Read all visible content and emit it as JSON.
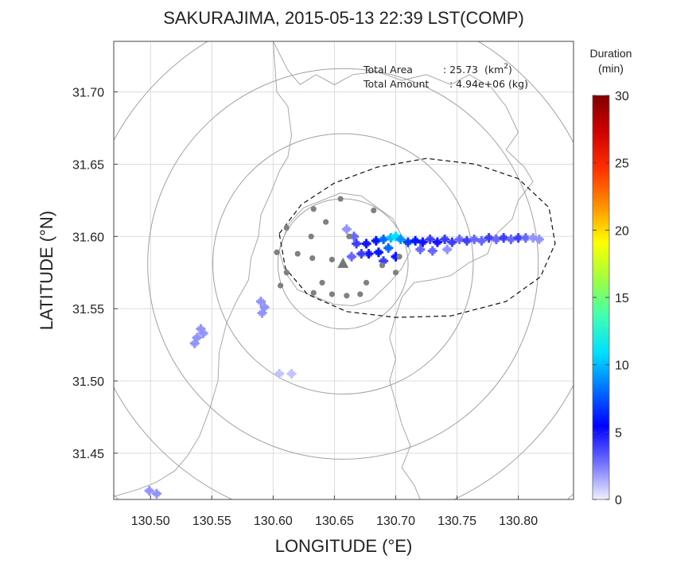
{
  "title": "SAKURAJIMA, 2015-05-13 22:39 LST(COMP)",
  "xlabel": "LONGITUDE (°E)",
  "ylabel": "LATITUDE (°N)",
  "info": {
    "area_label": "Total Area",
    "area_value": ": 25.73",
    "area_unit_base": "(km",
    "area_unit_sup": "2",
    "area_unit_close": ")",
    "amount_label": "Total Amount",
    "amount_value": ": 4.94e+06 (kg)"
  },
  "colorbar": {
    "title_line1": "Duration",
    "title_line2": "(min)",
    "range": [
      0,
      30
    ],
    "ticks": [
      "0",
      "5",
      "10",
      "15",
      "20",
      "25",
      "30"
    ],
    "stops": [
      "#f0f0ff",
      "#7070ff",
      "#0000ff",
      "#0070ff",
      "#00e0ff",
      "#40ffb0",
      "#a0ff40",
      "#ffff00",
      "#ff9000",
      "#ff3000",
      "#d00000",
      "#800000"
    ]
  },
  "chart_data": {
    "type": "scatter",
    "xlim": [
      130.47,
      130.845
    ],
    "ylim": [
      31.418,
      31.735
    ],
    "xticks": [
      130.5,
      130.55,
      130.6,
      130.65,
      130.7,
      130.75,
      130.8
    ],
    "yticks": [
      31.45,
      31.5,
      31.55,
      31.6,
      31.65,
      31.7
    ],
    "xtick_labels": [
      "130.50",
      "130.55",
      "130.60",
      "130.65",
      "130.70",
      "130.75",
      "130.80"
    ],
    "ytick_labels": [
      "31.45",
      "31.50",
      "31.55",
      "31.60",
      "31.65",
      "31.70"
    ],
    "grid": true,
    "vent": {
      "lon": 130.657,
      "lat": 31.581
    },
    "range_rings_km": [
      5,
      10,
      15,
      20,
      25
    ],
    "stations": [
      {
        "lon": 130.611,
        "lat": 31.606
      },
      {
        "lon": 130.633,
        "lat": 31.619
      },
      {
        "lon": 130.655,
        "lat": 31.626
      },
      {
        "lon": 130.682,
        "lat": 31.618
      },
      {
        "lon": 130.643,
        "lat": 31.61
      },
      {
        "lon": 130.662,
        "lat": 31.6
      },
      {
        "lon": 130.62,
        "lat": 31.588
      },
      {
        "lon": 130.632,
        "lat": 31.585
      },
      {
        "lon": 130.648,
        "lat": 31.584
      },
      {
        "lon": 130.603,
        "lat": 31.589
      },
      {
        "lon": 130.611,
        "lat": 31.575
      },
      {
        "lon": 130.606,
        "lat": 31.566
      },
      {
        "lon": 130.64,
        "lat": 31.568
      },
      {
        "lon": 130.676,
        "lat": 31.568
      },
      {
        "lon": 130.689,
        "lat": 31.58
      },
      {
        "lon": 130.703,
        "lat": 31.586
      },
      {
        "lon": 130.7,
        "lat": 31.575
      },
      {
        "lon": 130.633,
        "lat": 31.561
      },
      {
        "lon": 130.648,
        "lat": 31.56
      },
      {
        "lon": 130.66,
        "lat": 31.559
      },
      {
        "lon": 130.671,
        "lat": 31.56
      },
      {
        "lon": 130.631,
        "lat": 31.6
      }
    ],
    "dispersion_region": [
      {
        "lon": 130.605,
        "lat": 31.602
      },
      {
        "lon": 130.623,
        "lat": 31.622
      },
      {
        "lon": 130.65,
        "lat": 31.637
      },
      {
        "lon": 130.685,
        "lat": 31.648
      },
      {
        "lon": 130.725,
        "lat": 31.654
      },
      {
        "lon": 130.765,
        "lat": 31.65
      },
      {
        "lon": 130.8,
        "lat": 31.64
      },
      {
        "lon": 130.825,
        "lat": 31.62
      },
      {
        "lon": 130.83,
        "lat": 31.595
      },
      {
        "lon": 130.818,
        "lat": 31.572
      },
      {
        "lon": 130.79,
        "lat": 31.555
      },
      {
        "lon": 130.745,
        "lat": 31.545
      },
      {
        "lon": 130.7,
        "lat": 31.544
      },
      {
        "lon": 130.66,
        "lat": 31.548
      },
      {
        "lon": 130.628,
        "lat": 31.56
      },
      {
        "lon": 130.61,
        "lat": 31.578
      },
      {
        "lon": 130.605,
        "lat": 31.602
      }
    ],
    "ash_points": [
      {
        "lon": 130.668,
        "lat": 31.595,
        "d": 4
      },
      {
        "lon": 130.676,
        "lat": 31.595,
        "d": 5
      },
      {
        "lon": 130.684,
        "lat": 31.597,
        "d": 6
      },
      {
        "lon": 130.69,
        "lat": 31.598,
        "d": 8
      },
      {
        "lon": 130.696,
        "lat": 31.599,
        "d": 10
      },
      {
        "lon": 130.7,
        "lat": 31.6,
        "d": 11
      },
      {
        "lon": 130.704,
        "lat": 31.598,
        "d": 9
      },
      {
        "lon": 130.694,
        "lat": 31.592,
        "d": 8
      },
      {
        "lon": 130.686,
        "lat": 31.589,
        "d": 6
      },
      {
        "lon": 130.678,
        "lat": 31.588,
        "d": 5
      },
      {
        "lon": 130.672,
        "lat": 31.588,
        "d": 4
      },
      {
        "lon": 130.664,
        "lat": 31.586,
        "d": 3
      },
      {
        "lon": 130.666,
        "lat": 31.6,
        "d": 3
      },
      {
        "lon": 130.71,
        "lat": 31.596,
        "d": 7
      },
      {
        "lon": 130.716,
        "lat": 31.597,
        "d": 6
      },
      {
        "lon": 130.722,
        "lat": 31.596,
        "d": 5
      },
      {
        "lon": 130.728,
        "lat": 31.598,
        "d": 4
      },
      {
        "lon": 130.734,
        "lat": 31.596,
        "d": 5
      },
      {
        "lon": 130.74,
        "lat": 31.598,
        "d": 4
      },
      {
        "lon": 130.746,
        "lat": 31.596,
        "d": 4
      },
      {
        "lon": 130.752,
        "lat": 31.598,
        "d": 3
      },
      {
        "lon": 130.758,
        "lat": 31.597,
        "d": 4
      },
      {
        "lon": 130.764,
        "lat": 31.598,
        "d": 3
      },
      {
        "lon": 130.77,
        "lat": 31.597,
        "d": 3
      },
      {
        "lon": 130.776,
        "lat": 31.599,
        "d": 4
      },
      {
        "lon": 130.782,
        "lat": 31.598,
        "d": 3
      },
      {
        "lon": 130.788,
        "lat": 31.599,
        "d": 4
      },
      {
        "lon": 130.794,
        "lat": 31.598,
        "d": 3
      },
      {
        "lon": 130.8,
        "lat": 31.599,
        "d": 4
      },
      {
        "lon": 130.806,
        "lat": 31.599,
        "d": 3
      },
      {
        "lon": 130.812,
        "lat": 31.599,
        "d": 2
      },
      {
        "lon": 130.817,
        "lat": 31.598,
        "d": 2
      },
      {
        "lon": 130.72,
        "lat": 31.591,
        "d": 3
      },
      {
        "lon": 130.73,
        "lat": 31.59,
        "d": 3
      },
      {
        "lon": 130.742,
        "lat": 31.591,
        "d": 2
      },
      {
        "lon": 130.69,
        "lat": 31.583,
        "d": 4
      },
      {
        "lon": 130.7,
        "lat": 31.586,
        "d": 5
      },
      {
        "lon": 130.66,
        "lat": 31.605,
        "d": 2
      },
      {
        "lon": 130.59,
        "lat": 31.555,
        "d": 2
      },
      {
        "lon": 130.593,
        "lat": 31.551,
        "d": 2
      },
      {
        "lon": 130.591,
        "lat": 31.547,
        "d": 2
      },
      {
        "lon": 130.541,
        "lat": 31.536,
        "d": 2
      },
      {
        "lon": 130.538,
        "lat": 31.53,
        "d": 2
      },
      {
        "lon": 130.543,
        "lat": 31.533,
        "d": 2
      },
      {
        "lon": 130.536,
        "lat": 31.526,
        "d": 2
      },
      {
        "lon": 130.605,
        "lat": 31.505,
        "d": 1
      },
      {
        "lon": 130.615,
        "lat": 31.505,
        "d": 1
      },
      {
        "lon": 130.499,
        "lat": 31.424,
        "d": 2
      },
      {
        "lon": 130.505,
        "lat": 31.422,
        "d": 2
      }
    ],
    "coastlines": [
      [
        {
          "lon": 130.6,
          "lat": 31.735
        },
        {
          "lon": 130.612,
          "lat": 31.715
        },
        {
          "lon": 130.622,
          "lat": 31.705
        },
        {
          "lon": 130.635,
          "lat": 31.712
        },
        {
          "lon": 130.65,
          "lat": 31.705
        },
        {
          "lon": 130.665,
          "lat": 31.712
        },
        {
          "lon": 130.685,
          "lat": 31.714
        },
        {
          "lon": 130.705,
          "lat": 31.708
        },
        {
          "lon": 130.725,
          "lat": 31.712
        },
        {
          "lon": 130.745,
          "lat": 31.705
        },
        {
          "lon": 130.76,
          "lat": 31.712
        },
        {
          "lon": 130.778,
          "lat": 31.703
        },
        {
          "lon": 130.79,
          "lat": 31.69
        },
        {
          "lon": 130.8,
          "lat": 31.672
        },
        {
          "lon": 130.79,
          "lat": 31.66
        },
        {
          "lon": 130.805,
          "lat": 31.648
        },
        {
          "lon": 130.812,
          "lat": 31.638
        },
        {
          "lon": 130.8,
          "lat": 31.625
        },
        {
          "lon": 130.795,
          "lat": 31.612
        },
        {
          "lon": 130.78,
          "lat": 31.6
        },
        {
          "lon": 130.775,
          "lat": 31.588
        },
        {
          "lon": 130.76,
          "lat": 31.582
        },
        {
          "lon": 130.745,
          "lat": 31.573
        },
        {
          "lon": 130.73,
          "lat": 31.57
        },
        {
          "lon": 130.715,
          "lat": 31.568
        },
        {
          "lon": 130.705,
          "lat": 31.558
        },
        {
          "lon": 130.7,
          "lat": 31.545
        },
        {
          "lon": 130.695,
          "lat": 31.53
        },
        {
          "lon": 130.7,
          "lat": 31.515
        },
        {
          "lon": 130.695,
          "lat": 31.5
        },
        {
          "lon": 130.7,
          "lat": 31.485
        },
        {
          "lon": 130.705,
          "lat": 31.47
        },
        {
          "lon": 130.712,
          "lat": 31.455
        },
        {
          "lon": 130.705,
          "lat": 31.44
        },
        {
          "lon": 130.715,
          "lat": 31.428
        },
        {
          "lon": 130.72,
          "lat": 31.418
        }
      ],
      [
        {
          "lon": 130.6,
          "lat": 31.735
        },
        {
          "lon": 130.603,
          "lat": 31.7
        },
        {
          "lon": 130.612,
          "lat": 31.69
        },
        {
          "lon": 130.615,
          "lat": 31.67
        },
        {
          "lon": 130.612,
          "lat": 31.655
        },
        {
          "lon": 130.605,
          "lat": 31.645
        },
        {
          "lon": 130.598,
          "lat": 31.63
        },
        {
          "lon": 130.59,
          "lat": 31.615
        },
        {
          "lon": 130.588,
          "lat": 31.6
        },
        {
          "lon": 130.582,
          "lat": 31.585
        },
        {
          "lon": 130.58,
          "lat": 31.57
        },
        {
          "lon": 130.57,
          "lat": 31.555
        },
        {
          "lon": 130.562,
          "lat": 31.54
        },
        {
          "lon": 130.556,
          "lat": 31.52
        },
        {
          "lon": 130.555,
          "lat": 31.5
        },
        {
          "lon": 130.548,
          "lat": 31.48
        },
        {
          "lon": 130.54,
          "lat": 31.462
        },
        {
          "lon": 130.53,
          "lat": 31.448
        },
        {
          "lon": 130.52,
          "lat": 31.438
        },
        {
          "lon": 130.505,
          "lat": 31.43
        },
        {
          "lon": 130.49,
          "lat": 31.425
        },
        {
          "lon": 130.47,
          "lat": 31.42
        }
      ],
      [
        {
          "lon": 130.612,
          "lat": 31.608
        },
        {
          "lon": 130.625,
          "lat": 31.62
        },
        {
          "lon": 130.64,
          "lat": 31.625
        },
        {
          "lon": 130.655,
          "lat": 31.63
        },
        {
          "lon": 130.672,
          "lat": 31.628
        },
        {
          "lon": 130.685,
          "lat": 31.62
        },
        {
          "lon": 130.698,
          "lat": 31.612
        },
        {
          "lon": 130.705,
          "lat": 31.6
        },
        {
          "lon": 130.712,
          "lat": 31.59
        },
        {
          "lon": 130.705,
          "lat": 31.578
        },
        {
          "lon": 130.695,
          "lat": 31.568
        },
        {
          "lon": 130.68,
          "lat": 31.556
        },
        {
          "lon": 130.665,
          "lat": 31.552
        },
        {
          "lon": 130.65,
          "lat": 31.553
        },
        {
          "lon": 130.635,
          "lat": 31.558
        },
        {
          "lon": 130.62,
          "lat": 31.563
        },
        {
          "lon": 130.61,
          "lat": 31.575
        },
        {
          "lon": 130.605,
          "lat": 31.59
        },
        {
          "lon": 130.612,
          "lat": 31.608
        }
      ]
    ]
  }
}
